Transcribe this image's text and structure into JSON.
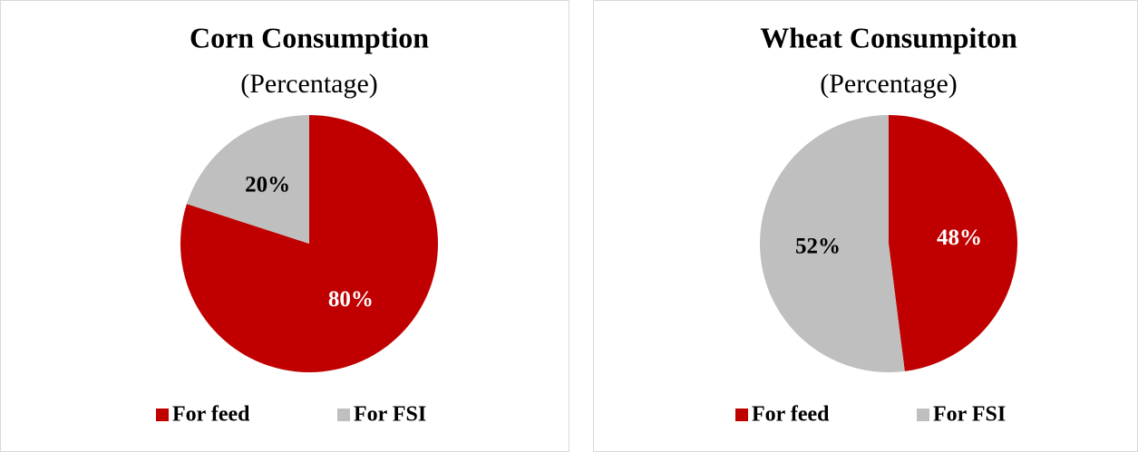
{
  "chart_data": [
    {
      "type": "pie",
      "title": "Corn Consumption",
      "subtitle": "(Percentage)",
      "categories": [
        "For feed",
        "For FSI"
      ],
      "values": [
        80,
        20
      ],
      "value_labels": [
        "80%",
        "20%"
      ],
      "colors": [
        "#c00000",
        "#bfbfbf"
      ],
      "legend": "bottom"
    },
    {
      "type": "pie",
      "title": "Wheat Consumpiton",
      "subtitle": "(Percentage)",
      "categories": [
        "For feed",
        "For FSI"
      ],
      "values": [
        48,
        52
      ],
      "value_labels": [
        "48%",
        "52%"
      ],
      "colors": [
        "#c00000",
        "#bfbfbf"
      ],
      "legend": "bottom"
    }
  ]
}
